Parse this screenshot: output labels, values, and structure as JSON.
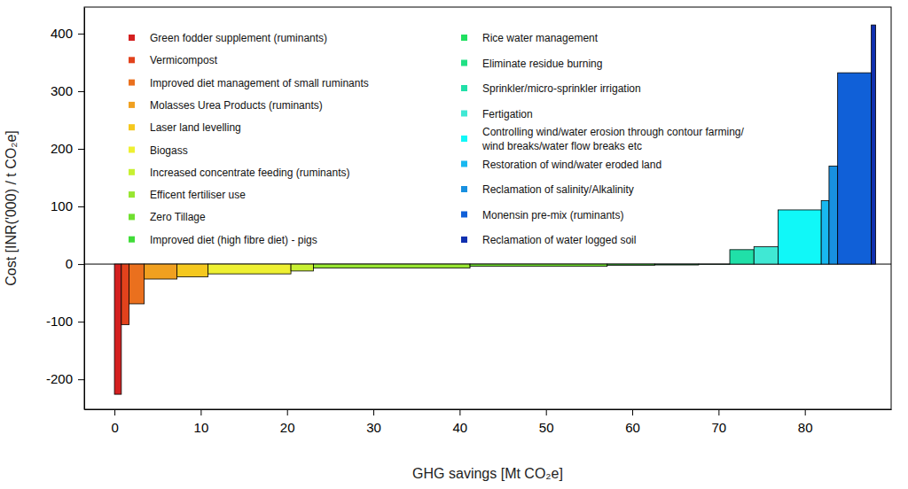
{
  "chart_data": {
    "type": "bar",
    "x_label": "GHG savings [Mt CO₂e]",
    "y_label": "Cost [INR('000) / t CO₂e]",
    "categories": [
      "Green fodder supplement (ruminants)",
      "Vermicompost",
      "Improved diet management of small ruminants",
      "Molasses Urea Products (ruminants)",
      "Laser land levelling",
      "Biogass",
      "Increased concentrate feeding (ruminants)",
      "Efficent fertiliser use",
      "Zero Tillage",
      "Improved diet (high fibre diet) - pigs",
      "Rice water management",
      "Eliminate residue burning",
      "Sprinkler/micro-sprinkler irrigation",
      "Fertigation",
      "Controlling wind/water erosion through contour farming/\nwind breaks/water flow breaks etc",
      "Restoration of wind/water eroded land",
      "Reclamation of salinity/Alkalinity",
      "Monensin pre-mix (ruminants)",
      "Reclamation of water logged soil"
    ],
    "values": [
      -226,
      -105,
      -69,
      -26,
      -22,
      -17,
      -12,
      -7,
      -4,
      -2,
      -1.5,
      -0.5,
      25,
      30,
      94,
      110,
      170,
      332,
      415
    ],
    "savings": [
      0.8,
      0.9,
      1.75,
      3.8,
      3.6,
      9.6,
      2.6,
      18.15,
      15.9,
      5.5,
      5.1,
      3.6,
      2.8,
      2.8,
      5.0,
      0.9,
      1.0,
      3.9,
      0.5
    ],
    "colors": [
      "#d42020",
      "#e2421c",
      "#ea701e",
      "#f0a020",
      "#f5c81e",
      "#eef032",
      "#c8f032",
      "#98e632",
      "#70e030",
      "#40dc38",
      "#20e060",
      "#20e084",
      "#20e0a8",
      "#40e8d4",
      "#10f8f8",
      "#18b8f0",
      "#1890e0",
      "#1060d8",
      "#1030b0"
    ],
    "xlim": [
      -3.5,
      90
    ],
    "xticks": [
      0,
      10,
      20,
      30,
      40,
      50,
      60,
      70,
      80
    ],
    "ylim": [
      -252,
      446
    ],
    "yticks": [
      -200,
      -100,
      0,
      100,
      200,
      300,
      400
    ],
    "grid": false,
    "legend": "top"
  }
}
